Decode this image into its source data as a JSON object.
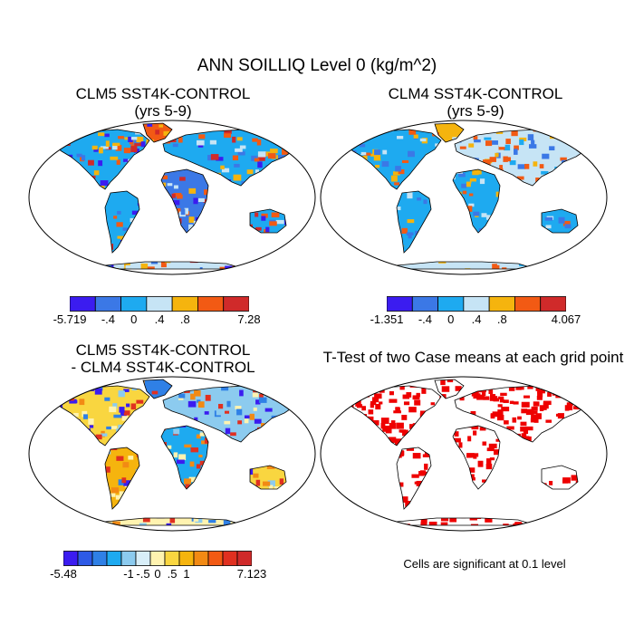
{
  "title": "ANN SOILLIQ Level 0 (kg/m^2)",
  "panels": {
    "top_left": {
      "title_line1": "CLM5 SST4K-CONTROL",
      "title_line2": "(yrs 5-9)"
    },
    "top_right": {
      "title_line1": "CLM4 SST4K-CONTROL",
      "title_line2": "(yrs 5-9)"
    },
    "bottom_left": {
      "title_line1": "CLM5 SST4K-CONTROL",
      "title_line2": "- CLM4 SST4K-CONTROL"
    },
    "bottom_right": {
      "title_line1": "T-Test of two Case means at each grid point",
      "note": "Cells are significant at 0.1 level"
    }
  },
  "colorbars": {
    "top_left": {
      "colors": [
        "#3b1cf0",
        "#3b78e6",
        "#1eaaf0",
        "#c6e4f5",
        "#f5b40e",
        "#f25a14",
        "#d02a2a"
      ],
      "labels": [
        "-5.719",
        "-.4",
        "0",
        ".4",
        ".8",
        "7.28"
      ]
    },
    "top_right": {
      "colors": [
        "#3b1cf0",
        "#3b78e6",
        "#1eaaf0",
        "#c6e4f5",
        "#f5b40e",
        "#f25a14",
        "#d02a2a"
      ],
      "labels": [
        "-1.351",
        "-.4",
        "0",
        ".4",
        ".8",
        "4.067"
      ]
    },
    "bottom_left": {
      "colors": [
        "#3b1cf0",
        "#2e5ae6",
        "#2f80e6",
        "#1eaaf0",
        "#8ccbef",
        "#d8eef8",
        "#fff3b0",
        "#f9d640",
        "#f5b40e",
        "#f28a14",
        "#f25a14",
        "#e03020",
        "#d02a2a"
      ],
      "labels": [
        "-5.48",
        "-1",
        "-.5",
        "0",
        ".5",
        "1",
        "7.123"
      ]
    }
  },
  "colors": {
    "ocean": "#ffffff",
    "coast": "#000000",
    "significant": "#ee0000"
  }
}
